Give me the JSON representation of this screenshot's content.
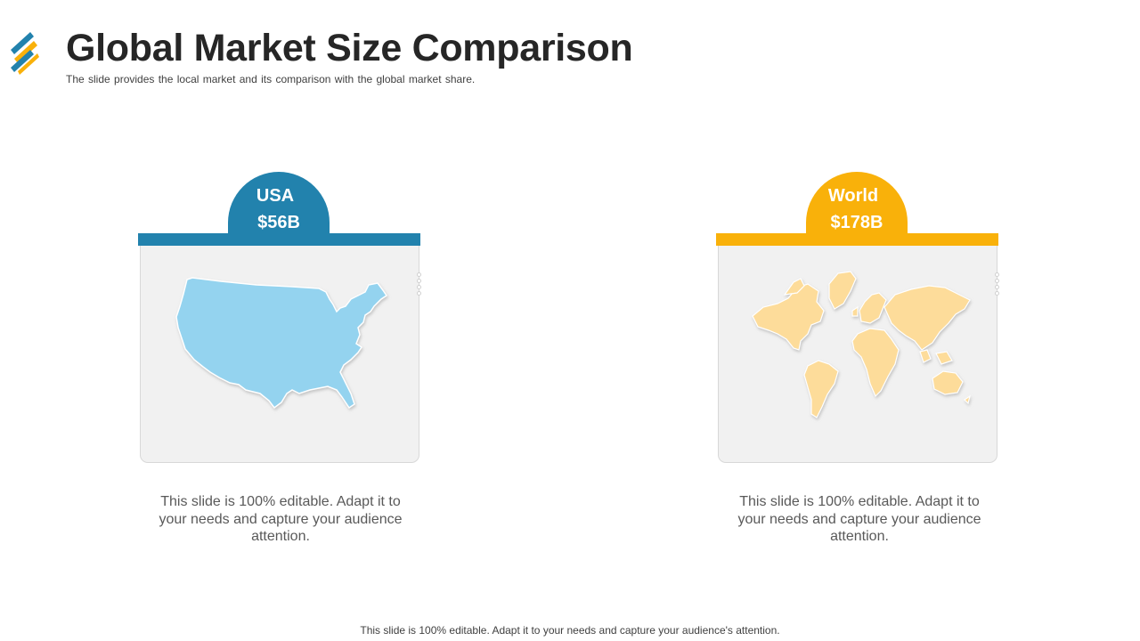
{
  "header": {
    "title": "Global Market Size Comparison",
    "subtitle": "The slide provides  the local market and its comparison with the global market share."
  },
  "cards": [
    {
      "label": "USA",
      "value": "$56B",
      "icon": "usa-map-icon",
      "color": "#2282ad",
      "map_color": "#94d3ef",
      "description": "This slide is 100% editable. Adapt it to your needs and capture your audience attention."
    },
    {
      "label": "World",
      "value": "$178B",
      "icon": "world-map-icon",
      "color": "#f9b10a",
      "map_color": "#fddc9a",
      "description": "This slide is 100% editable. Adapt it to your needs and capture your audience attention."
    }
  ],
  "footer": {
    "text": "This slide is 100% editable. Adapt it to your needs and capture your audience's attention."
  },
  "colors": {
    "logo_blue": "#2282ad",
    "logo_orange": "#f9b10a",
    "title": "#262626"
  }
}
